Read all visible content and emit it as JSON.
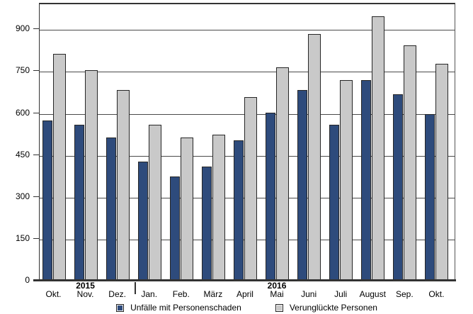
{
  "chart_data": {
    "type": "bar",
    "title": "",
    "categories": [
      "Okt.",
      "Nov.",
      "Dez.",
      "Jan.",
      "Feb.",
      "März",
      "April",
      "Mai",
      "Juni",
      "Juli",
      "August",
      "Sep.",
      "Okt."
    ],
    "series": [
      {
        "name": "Unfälle mit Personenschaden",
        "color": "#2e4b7c",
        "values": [
          575,
          560,
          515,
          430,
          375,
          410,
          505,
          605,
          685,
          560,
          720,
          670,
          600
        ]
      },
      {
        "name": "Verunglückte Personen",
        "color": "#c9c9c9",
        "values": [
          815,
          755,
          685,
          560,
          515,
          525,
          660,
          765,
          885,
          720,
          950,
          845,
          780
        ]
      }
    ],
    "y_ticks": [
      0,
      150,
      300,
      450,
      600,
      750,
      900
    ],
    "ylim": [
      0,
      992
    ],
    "grid": true,
    "legend_position": "bottom",
    "year_markers": [
      {
        "label": "2015",
        "category_index": 1
      },
      {
        "label": "2016",
        "category_index": 7
      }
    ],
    "year_separator_after_index": 2,
    "colors": {
      "axis": "#333333",
      "gridline": "#4a4a4a",
      "bar_border": "#262626",
      "background": "#ffffff"
    }
  }
}
